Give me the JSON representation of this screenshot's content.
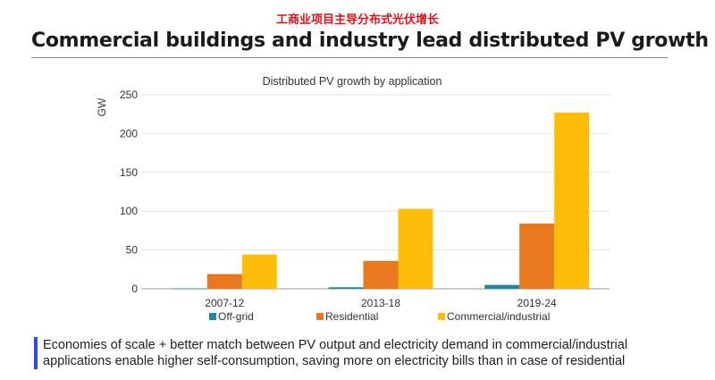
{
  "header": {
    "cn_title": "工商业项目主导分布式光伏增长",
    "title": "Commercial buildings and industry lead distributed PV growth"
  },
  "chart_data": {
    "type": "bar",
    "title": "Distributed PV growth by application",
    "xlabel": "",
    "ylabel": "GW",
    "ylim": [
      0,
      250
    ],
    "yticks": [
      0,
      50,
      100,
      150,
      200,
      250
    ],
    "grid": true,
    "legend_position": "bottom",
    "categories": [
      "2007-12",
      "2013-18",
      "2019-24"
    ],
    "series": [
      {
        "name": "Off-grid",
        "color": "#1a8a9e",
        "values": [
          0.5,
          2,
          5
        ]
      },
      {
        "name": "Residential",
        "color": "#e8771e",
        "values": [
          19,
          36,
          84
        ]
      },
      {
        "name": "Commercial/industrial",
        "color": "#ffbd0a",
        "values": [
          44,
          103,
          227
        ]
      }
    ]
  },
  "note": {
    "line1": "Economies of scale + better match between PV output and electricity demand in commercial/industrial",
    "line2": "applications enable higher self-consumption, saving more on electricity bills than in case of residential"
  }
}
